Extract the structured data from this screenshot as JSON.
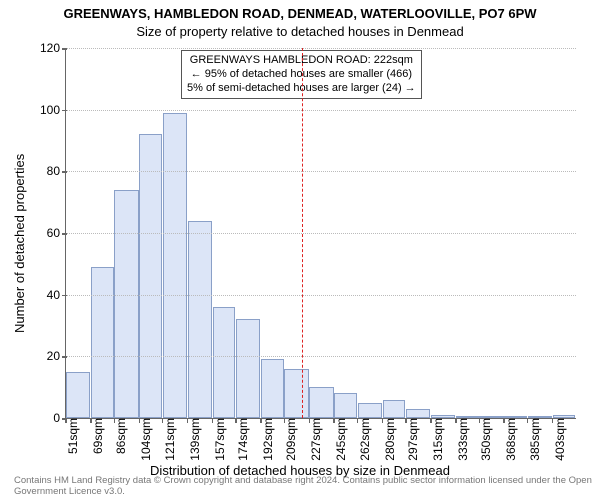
{
  "chart": {
    "type": "histogram",
    "title_line1": "GREENWAYS, HAMBLEDON ROAD, DENMEAD, WATERLOOVILLE, PO7 6PW",
    "title_line2": "Size of property relative to detached houses in Denmead",
    "ylabel": "Number of detached properties",
    "xlabel": "Distribution of detached houses by size in Denmead",
    "ylim": [
      0,
      120
    ],
    "yticks": [
      0,
      20,
      40,
      60,
      80,
      100,
      120
    ],
    "x_tick_labels": [
      "51sqm",
      "69sqm",
      "86sqm",
      "104sqm",
      "121sqm",
      "139sqm",
      "157sqm",
      "174sqm",
      "192sqm",
      "209sqm",
      "227sqm",
      "245sqm",
      "262sqm",
      "280sqm",
      "297sqm",
      "315sqm",
      "333sqm",
      "350sqm",
      "368sqm",
      "385sqm",
      "403sqm"
    ],
    "bin_edges": [
      51,
      69,
      86,
      104,
      121,
      139,
      157,
      174,
      192,
      209,
      227,
      245,
      262,
      280,
      297,
      315,
      333,
      350,
      368,
      385,
      403,
      420
    ],
    "bar_values": [
      15,
      49,
      74,
      92,
      99,
      64,
      36,
      32,
      19,
      16,
      10,
      8,
      5,
      6,
      3,
      1,
      0,
      0,
      0,
      0,
      1
    ],
    "bar_fill": "#dce5f7",
    "bar_stroke": "#8aa0c8",
    "reference_value": 222,
    "reference_color": "#d22",
    "annotation": {
      "line1": "GREENWAYS HAMBLEDON ROAD: 222sqm",
      "line2": "← 95% of detached houses are smaller (466)",
      "line3": "5% of semi-detached houses are larger (24) →"
    },
    "plot_bg": "#ffffff",
    "axis_color": "#666666",
    "grid_color": "#bbbbbb",
    "title_fontsize": 13,
    "label_fontsize": 13,
    "tick_fontsize": 12,
    "footer": "Contains HM Land Registry data © Crown copyright and database right 2024. Contains public sector information licensed under the Open Government Licence v3.0."
  }
}
